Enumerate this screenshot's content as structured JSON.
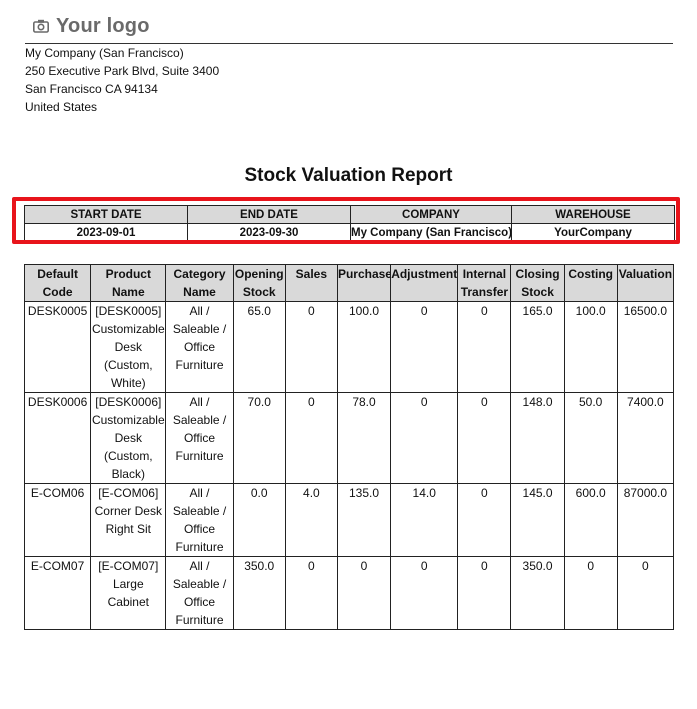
{
  "logo": {
    "text": "Your logo",
    "icon": "camera-icon"
  },
  "company_address": [
    "My Company (San Francisco)",
    "250 Executive Park Blvd, Suite 3400",
    "San Francisco CA 94134",
    "United States"
  ],
  "report": {
    "title": "Stock Valuation Report"
  },
  "summary": {
    "headers": [
      "START DATE",
      "END DATE",
      "COMPANY",
      "WAREHOUSE"
    ],
    "values": [
      "2023-09-01",
      "2023-09-30",
      "My Company (San Francisco)",
      "YourCompany"
    ],
    "highlight_color": "#e8141b"
  },
  "table": {
    "headers": [
      "Default Code",
      "Product Name",
      "Category Name",
      "Opening Stock",
      "Sales",
      "Purchase",
      "Adjustment",
      "Internal Transfer",
      "Closing Stock",
      "Costing",
      "Valuation"
    ],
    "rows": [
      [
        "DESK0005",
        "[DESK0005] Customizable Desk (Custom, White)",
        "All / Saleable / Office Furniture",
        "65.0",
        "0",
        "100.0",
        "0",
        "0",
        "165.0",
        "100.0",
        "16500.0"
      ],
      [
        "DESK0006",
        "[DESK0006] Customizable Desk (Custom, Black)",
        "All / Saleable / Office Furniture",
        "70.0",
        "0",
        "78.0",
        "0",
        "0",
        "148.0",
        "50.0",
        "7400.0"
      ],
      [
        "E-COM06",
        "[E-COM06] Corner Desk Right Sit",
        "All / Saleable / Office Furniture",
        "0.0",
        "4.0",
        "135.0",
        "14.0",
        "0",
        "145.0",
        "600.0",
        "87000.0"
      ],
      [
        "E-COM07",
        "[E-COM07] Large Cabinet",
        "All / Saleable / Office Furniture",
        "350.0",
        "0",
        "0",
        "0",
        "0",
        "350.0",
        "0",
        "0"
      ]
    ]
  }
}
